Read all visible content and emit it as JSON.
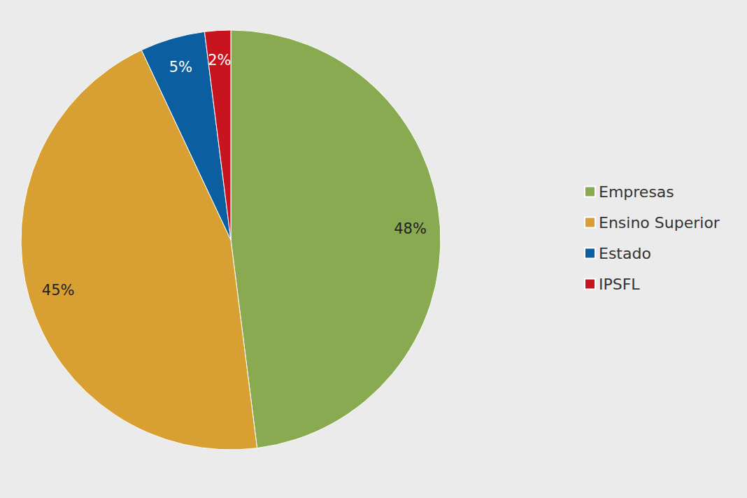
{
  "chart_data": {
    "type": "pie",
    "categories": [
      "Empresas",
      "Ensino Superior",
      "Estado",
      "IPSFL"
    ],
    "values": [
      48,
      45,
      5,
      2
    ],
    "value_labels": [
      "48%",
      "45%",
      "5%",
      "2%"
    ],
    "colors": [
      "#8aaa52",
      "#d8a032",
      "#0b5fa1",
      "#c8141e"
    ],
    "data_labels": true,
    "legend": "right"
  }
}
